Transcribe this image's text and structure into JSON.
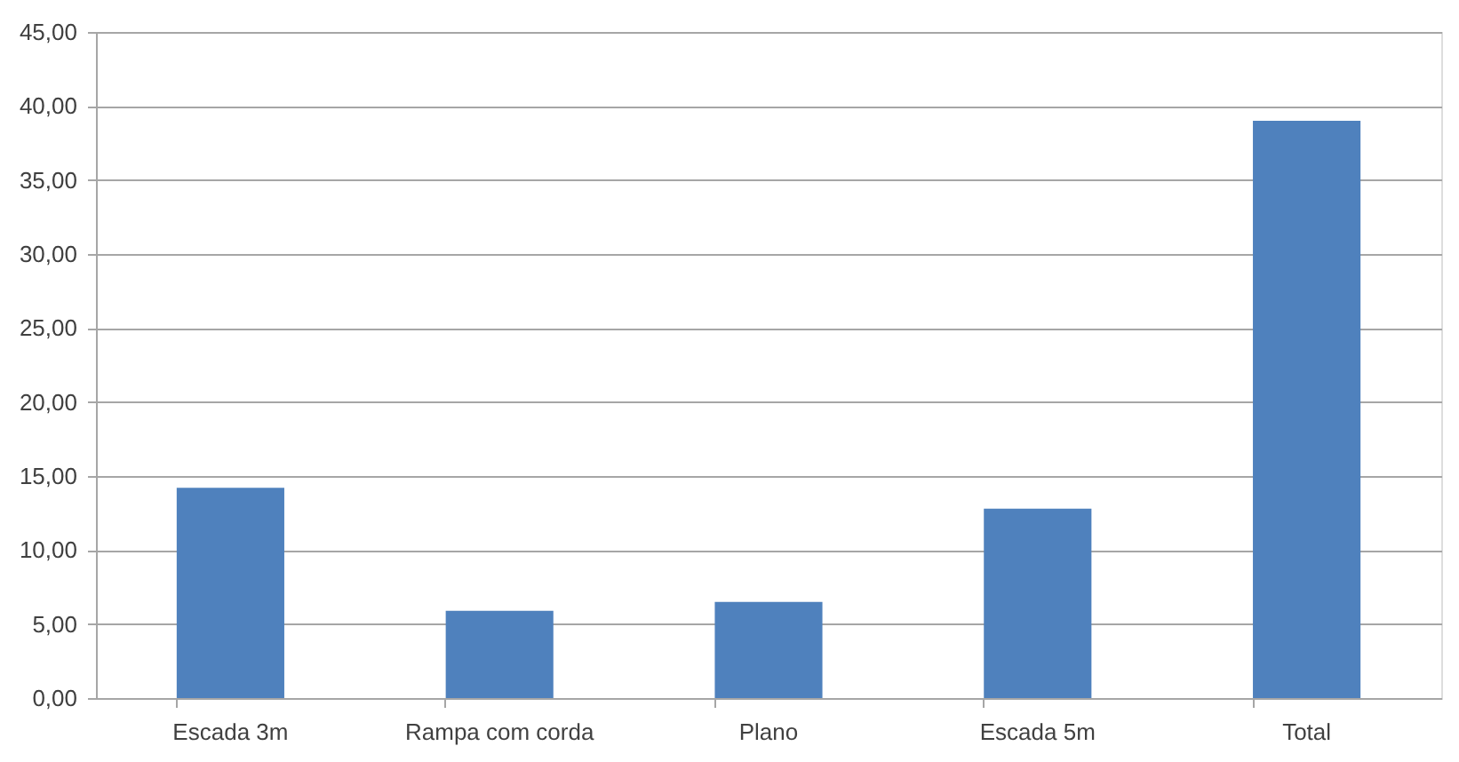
{
  "chart_data": {
    "type": "bar",
    "categories": [
      "Escada 3m",
      "Rampa com corda",
      "Plano",
      "Escada 5m",
      "Total"
    ],
    "values": [
      14.2,
      5.9,
      6.5,
      12.8,
      39.0
    ],
    "color": "#4f81bd",
    "ylim": [
      0,
      45
    ],
    "yticks": [
      {
        "value": 0,
        "label": "0,00"
      },
      {
        "value": 5,
        "label": "5,00"
      },
      {
        "value": 10,
        "label": "10,00"
      },
      {
        "value": 15,
        "label": "15,00"
      },
      {
        "value": 20,
        "label": "20,00"
      },
      {
        "value": 25,
        "label": "25,00"
      },
      {
        "value": 30,
        "label": "30,00"
      },
      {
        "value": 35,
        "label": "35,00"
      },
      {
        "value": 40,
        "label": "40,00"
      },
      {
        "value": 45,
        "label": "45,00"
      }
    ],
    "grid": "y"
  }
}
